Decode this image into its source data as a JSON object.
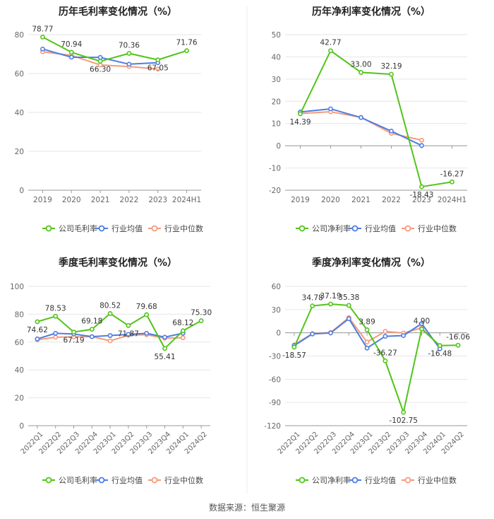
{
  "source": "数据来源：恒生聚源",
  "colors": {
    "company": "#52c41a",
    "avg": "#4e7de0",
    "median": "#f49a7c",
    "grid": "#e6e6e6",
    "axis": "#888888",
    "text": "#666666",
    "label": "#333333"
  },
  "chart_data": [
    {
      "type": "line",
      "title": "历年毛利率变化情况（%）",
      "categories": [
        "2019",
        "2020",
        "2021",
        "2022",
        "2023",
        "2024H1"
      ],
      "ylim": [
        0,
        80
      ],
      "yticks": [
        0,
        20,
        40,
        60,
        80
      ],
      "rotate_labels": false,
      "series": [
        {
          "name": "公司毛利率",
          "values": [
            78.77,
            70.94,
            66.3,
            70.36,
            67.05,
            71.76
          ],
          "labels": [
            "78.77",
            "70.94",
            "66.30",
            "70.36",
            "67.05",
            "71.76"
          ]
        },
        {
          "name": "行业均值",
          "values": [
            72.6,
            68.4,
            68.3,
            64.8,
            65.6,
            null
          ]
        },
        {
          "name": "行业中位数",
          "values": [
            71.2,
            69.3,
            64.4,
            63.6,
            62.3,
            null
          ]
        }
      ]
    },
    {
      "type": "line",
      "title": "历年净利率变化情况（%）",
      "categories": [
        "2019",
        "2020",
        "2021",
        "2022",
        "2023",
        "2024H1"
      ],
      "ylim": [
        -20,
        50
      ],
      "yticks": [
        -20,
        -10,
        0,
        10,
        20,
        30,
        40,
        50
      ],
      "rotate_labels": false,
      "series": [
        {
          "name": "公司净利率",
          "values": [
            14.39,
            42.77,
            33.0,
            32.19,
            -18.43,
            -16.27
          ],
          "labels": [
            "14.39",
            "42.77",
            "33.00",
            "32.19",
            "-18.43",
            "-16.27"
          ]
        },
        {
          "name": "行业均值",
          "values": [
            15.2,
            16.6,
            12.7,
            6.6,
            0.1,
            null
          ]
        },
        {
          "name": "行业中位数",
          "values": [
            14.5,
            15.3,
            12.8,
            5.6,
            2.5,
            null
          ]
        }
      ]
    },
    {
      "type": "line",
      "title": "季度毛利率变化情况（%）",
      "categories": [
        "2022Q1",
        "2022Q2",
        "2022Q3",
        "2022Q4",
        "2023Q1",
        "2023Q2",
        "2023Q3",
        "2023Q4",
        "2024Q1",
        "2024Q2"
      ],
      "ylim": [
        0,
        100
      ],
      "yticks": [
        0,
        20,
        40,
        60,
        80,
        100
      ],
      "rotate_labels": true,
      "series": [
        {
          "name": "公司毛利率",
          "values": [
            74.62,
            78.53,
            67.19,
            69.18,
            80.52,
            71.87,
            79.68,
            55.41,
            68.12,
            75.3
          ],
          "labels": [
            "74.62",
            "78.53",
            "67.19",
            "69.18",
            "80.52",
            "71.87",
            "79.68",
            "55.41",
            "68.12",
            "75.30"
          ]
        },
        {
          "name": "行业均值",
          "values": [
            62.3,
            66.3,
            65.8,
            63.9,
            64.7,
            65.5,
            66.3,
            63.5,
            66.4,
            null
          ]
        },
        {
          "name": "行业中位数",
          "values": [
            61.6,
            63.5,
            63.7,
            63.9,
            60.9,
            64.9,
            65.3,
            62.8,
            63.1,
            null
          ]
        }
      ]
    },
    {
      "type": "line",
      "title": "季度净利率变化情况（%）",
      "categories": [
        "2022Q1",
        "2022Q2",
        "2022Q3",
        "2022Q4",
        "2023Q1",
        "2023Q2",
        "2023Q3",
        "2023Q4",
        "2024Q1",
        "2024Q2"
      ],
      "ylim": [
        -120,
        60
      ],
      "yticks": [
        -120,
        -90,
        -60,
        -30,
        0,
        30,
        60
      ],
      "rotate_labels": true,
      "series": [
        {
          "name": "公司净利率",
          "values": [
            -18.57,
            34.78,
            37.19,
            35.38,
            3.89,
            -36.27,
            -102.75,
            4.9,
            -16.48,
            -16.06
          ],
          "labels": [
            "-18.57",
            "34.78",
            "37.19",
            "35.38",
            "3.89",
            "-36.27",
            "-102.75",
            "4.90",
            "-16.48",
            "-16.06"
          ]
        },
        {
          "name": "行业均值",
          "values": [
            -16.5,
            -1.5,
            -0.2,
            18.2,
            -19.8,
            -4.5,
            -3.6,
            11.9,
            -20.6,
            null
          ]
        },
        {
          "name": "行业中位数",
          "values": [
            -15.6,
            -1.0,
            0.4,
            19.7,
            -12.0,
            1.8,
            -0.3,
            6.3,
            -17.7,
            null
          ]
        }
      ]
    }
  ]
}
